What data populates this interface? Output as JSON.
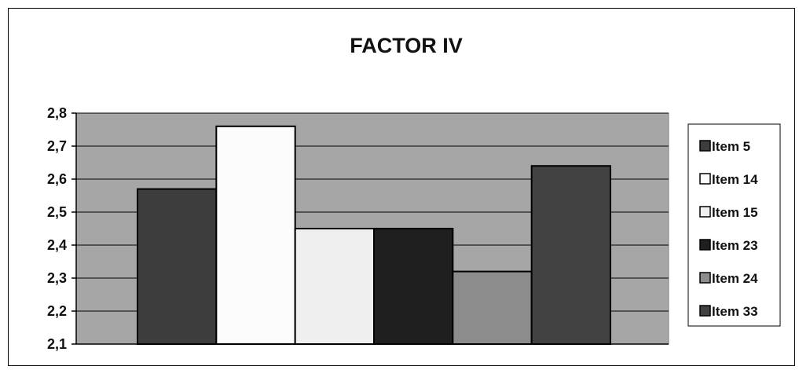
{
  "chart_data": {
    "type": "bar",
    "title": "FACTOR IV",
    "xlabel": "",
    "ylabel": "",
    "ylim": [
      2.1,
      2.8
    ],
    "yticks": [
      "2,1",
      "2,2",
      "2,3",
      "2,4",
      "2,5",
      "2,6",
      "2,7",
      "2,8"
    ],
    "yticks_values": [
      2.1,
      2.2,
      2.3,
      2.4,
      2.5,
      2.6,
      2.7,
      2.8
    ],
    "grid": true,
    "legend": "right",
    "plot_background": "#a6a6a6",
    "series": [
      {
        "name": "Item 5",
        "value": 2.57,
        "color": "#3d3d3d"
      },
      {
        "name": "Item 14",
        "value": 2.76,
        "color": "#fcfcfc"
      },
      {
        "name": "Item 15",
        "value": 2.45,
        "color": "#efefef"
      },
      {
        "name": "Item 23",
        "value": 2.45,
        "color": "#1f1f1f"
      },
      {
        "name": "Item 24",
        "value": 2.32,
        "color": "#8c8c8c"
      },
      {
        "name": "Item 33",
        "value": 2.64,
        "color": "#424242"
      }
    ]
  }
}
